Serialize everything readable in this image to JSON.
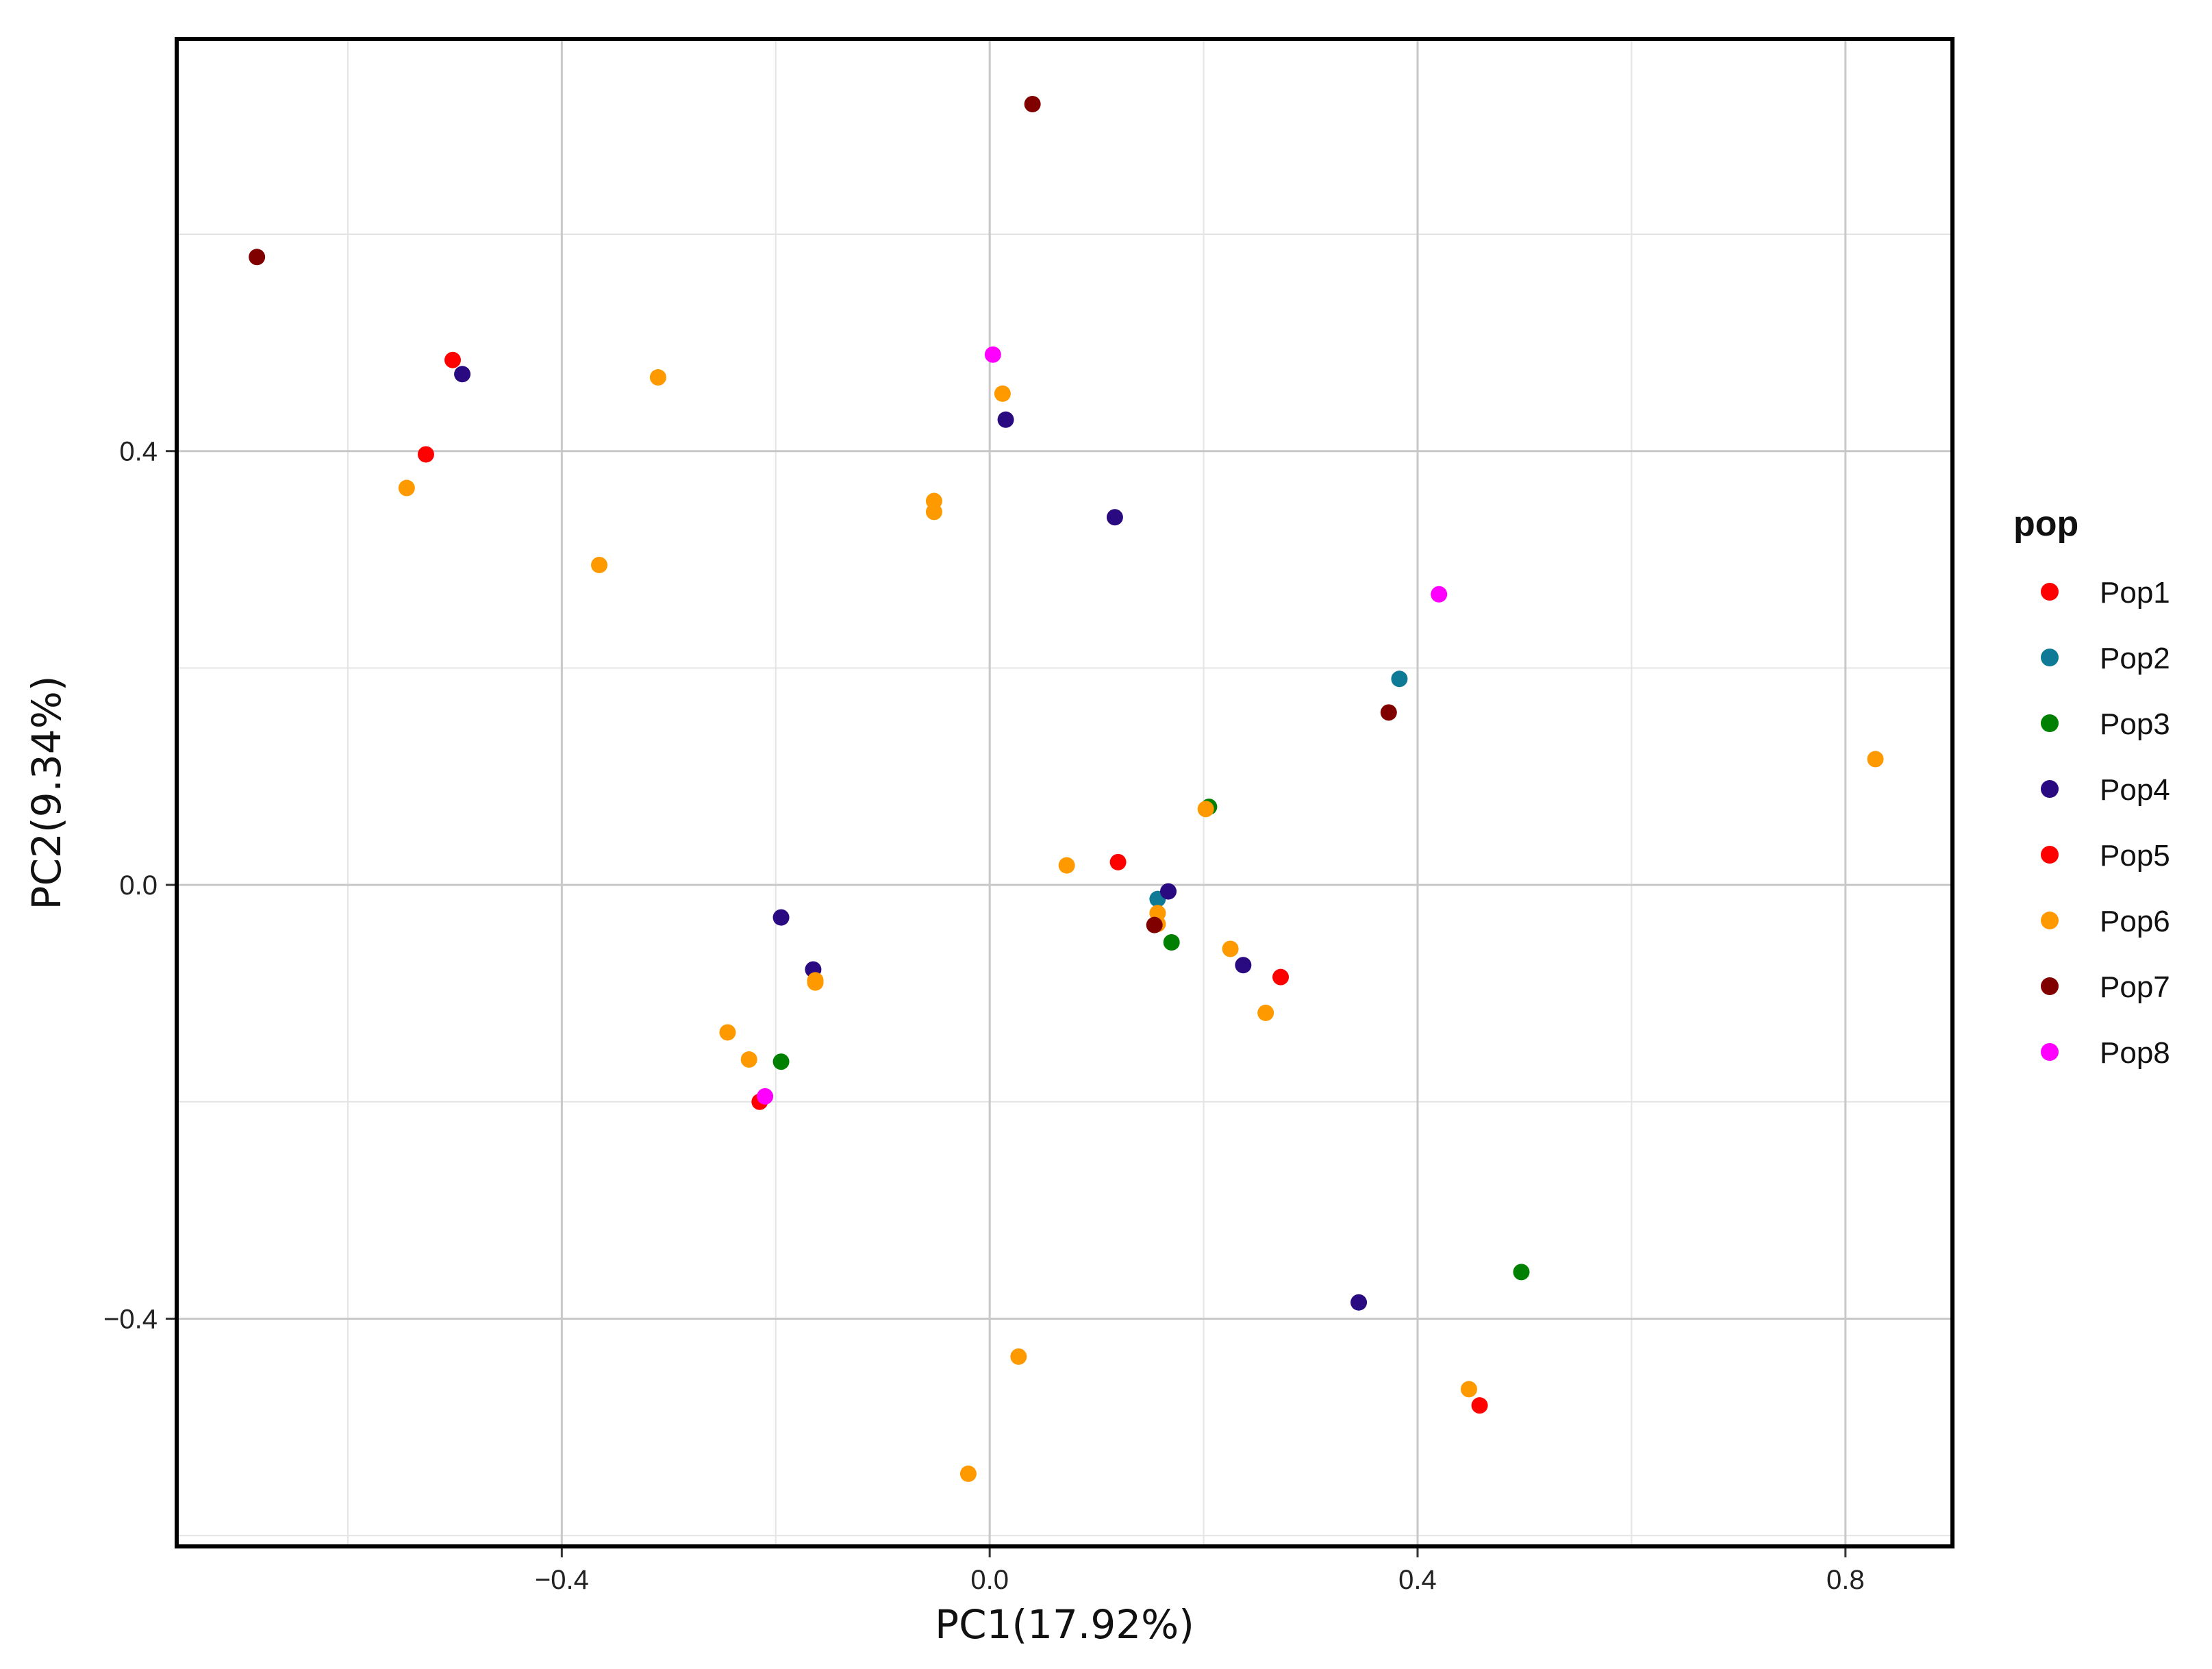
{
  "chart_data": {
    "type": "scatter",
    "title": "",
    "xlabel": "PC1(17.92%)",
    "ylabel": "PC2(9.34%)",
    "xlim": [
      -0.76,
      0.9
    ],
    "ylim": [
      -0.61,
      0.78
    ],
    "x_ticks": [
      -0.4,
      0.0,
      0.4,
      0.8
    ],
    "x_tick_labels": [
      "−0.4",
      "0.0",
      "0.4",
      "0.8"
    ],
    "y_ticks": [
      -0.4,
      0.0,
      0.4
    ],
    "y_tick_labels": [
      "−0.4",
      "0.0",
      "0.4"
    ],
    "grid": true,
    "legend_position": "right",
    "legend_title": "pop",
    "series": [
      {
        "name": "Pop1",
        "color": "#ff0000",
        "points": [
          [
            -0.502,
            0.484
          ],
          [
            -0.527,
            0.397
          ],
          [
            0.272,
            -0.085
          ],
          [
            0.458,
            -0.48
          ]
        ]
      },
      {
        "name": "Pop2",
        "color": "#0e7a96",
        "points": [
          [
            0.383,
            0.19
          ],
          [
            0.157,
            -0.013
          ]
        ]
      },
      {
        "name": "Pop3",
        "color": "#008000",
        "points": [
          [
            0.205,
            0.072
          ],
          [
            0.17,
            -0.053
          ],
          [
            -0.195,
            -0.163
          ],
          [
            0.497,
            -0.357
          ]
        ]
      },
      {
        "name": "Pop4",
        "color": "#2a0a80",
        "points": [
          [
            -0.493,
            0.471
          ],
          [
            0.015,
            0.429
          ],
          [
            0.117,
            0.339
          ],
          [
            0.167,
            -0.006
          ],
          [
            0.237,
            -0.074
          ],
          [
            -0.195,
            -0.03
          ],
          [
            -0.165,
            -0.078
          ],
          [
            0.345,
            -0.385
          ]
        ]
      },
      {
        "name": "Pop5",
        "color": "#ff0000",
        "points": [
          [
            0.12,
            0.021
          ],
          [
            -0.215,
            -0.2
          ]
        ]
      },
      {
        "name": "Pop6",
        "color": "#ff9900",
        "points": [
          [
            -0.545,
            0.366
          ],
          [
            -0.31,
            0.468
          ],
          [
            -0.365,
            0.295
          ],
          [
            0.012,
            0.453
          ],
          [
            -0.052,
            0.354
          ],
          [
            -0.052,
            0.344
          ],
          [
            0.202,
            0.07
          ],
          [
            0.072,
            0.018
          ],
          [
            0.157,
            -0.026
          ],
          [
            0.157,
            -0.036
          ],
          [
            0.225,
            -0.059
          ],
          [
            0.258,
            -0.118
          ],
          [
            -0.163,
            -0.088
          ],
          [
            -0.163,
            -0.09
          ],
          [
            -0.245,
            -0.136
          ],
          [
            -0.225,
            -0.161
          ],
          [
            0.027,
            -0.435
          ],
          [
            0.448,
            -0.465
          ],
          [
            -0.02,
            -0.543
          ],
          [
            0.828,
            0.116
          ]
        ]
      },
      {
        "name": "Pop7",
        "color": "#800000",
        "points": [
          [
            -0.685,
            0.579
          ],
          [
            0.04,
            0.72
          ],
          [
            0.373,
            0.159
          ],
          [
            0.154,
            -0.037
          ]
        ]
      },
      {
        "name": "Pop8",
        "color": "#ff00ff",
        "points": [
          [
            0.003,
            0.489
          ],
          [
            0.42,
            0.268
          ],
          [
            -0.21,
            -0.195
          ]
        ]
      }
    ]
  }
}
